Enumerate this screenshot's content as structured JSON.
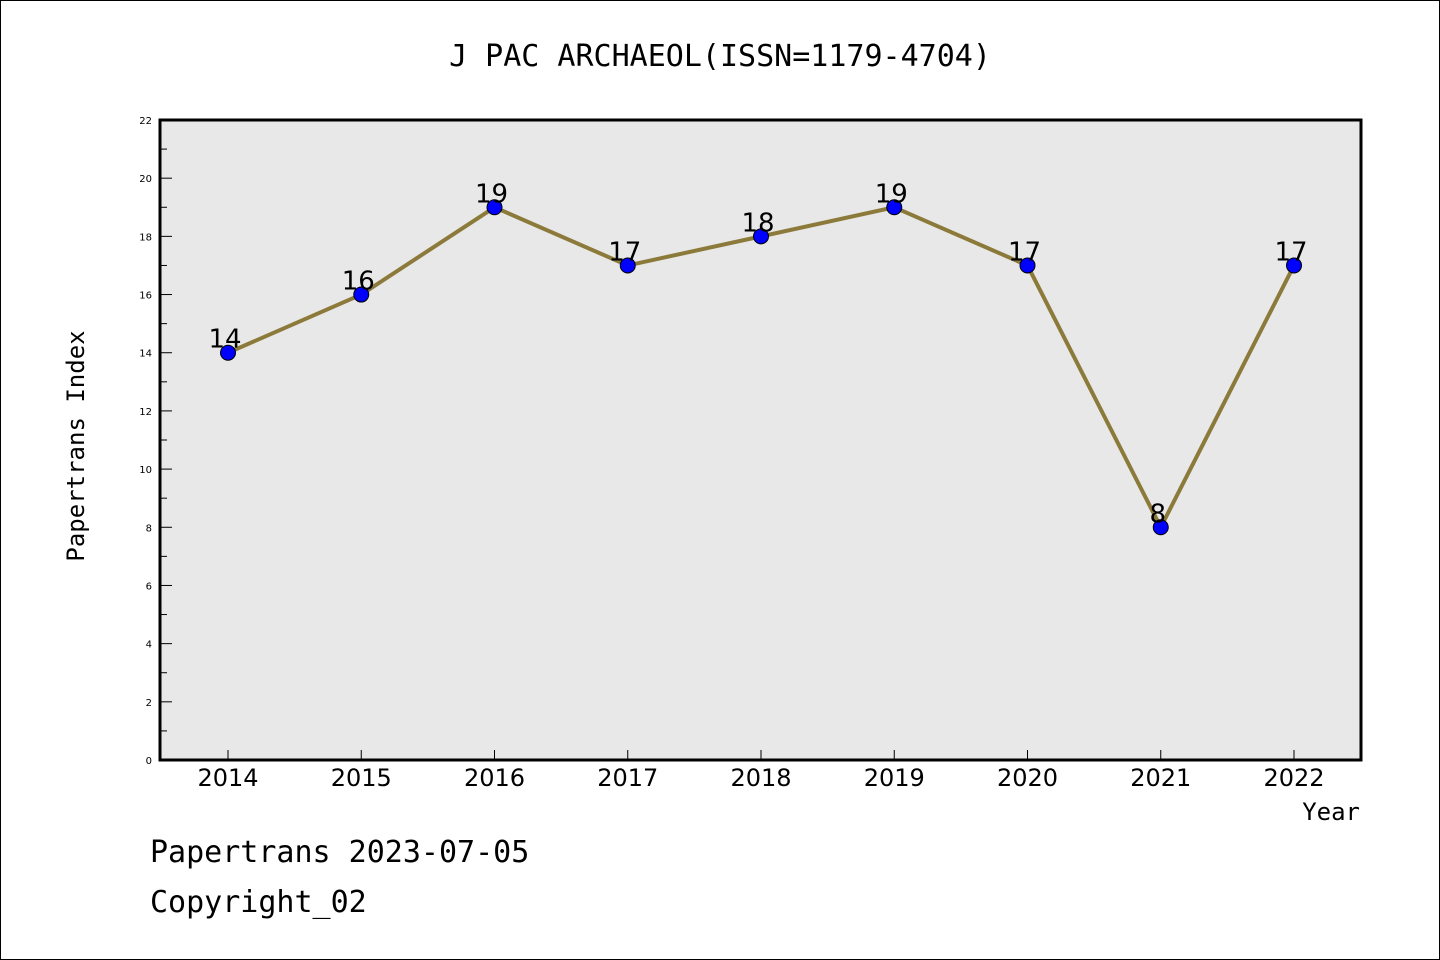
{
  "footer": {
    "line1": "Papertrans 2023-07-05",
    "line2": "Copyright_02"
  },
  "colors": {
    "plot_background": "#e8e8e8",
    "line": "#8b7a3a",
    "marker": "#0000ff"
  },
  "chart_data": {
    "type": "line",
    "title": "J PAC ARCHAEOL(ISSN=1179-4704)",
    "xlabel": "Year",
    "ylabel": "Papertrans Index",
    "categories": [
      "2014",
      "2015",
      "2016",
      "2017",
      "2018",
      "2019",
      "2020",
      "2021",
      "2022"
    ],
    "series": [
      {
        "values": [
          14,
          16,
          19,
          17,
          18,
          19,
          17,
          8,
          17
        ]
      }
    ],
    "ylim": [
      0,
      22
    ],
    "yticks": [
      "0",
      "2",
      "4",
      "6",
      "8",
      "10",
      "12",
      "14",
      "16",
      "18",
      "20",
      "22"
    ],
    "data_labels": [
      "14",
      "16",
      "19",
      "17",
      "18",
      "19",
      "17",
      "8",
      "17"
    ],
    "grid": false,
    "legend": "none"
  }
}
